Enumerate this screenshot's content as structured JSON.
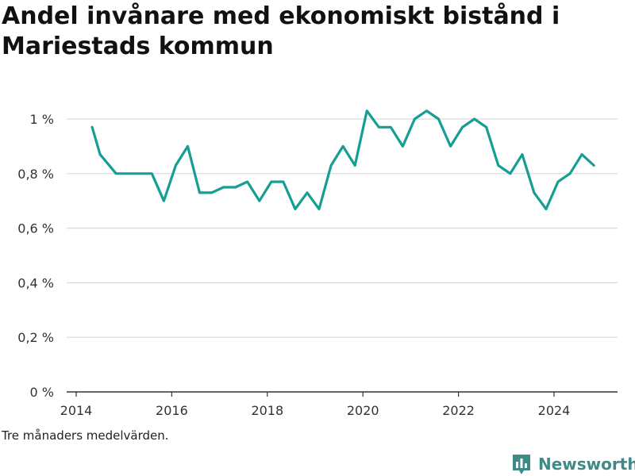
{
  "footnote": "Tre månaders medelvärden.",
  "logo": {
    "text": "Newsworthy",
    "icon": "newsworthy-logo-icon",
    "color": "#3d8b87"
  },
  "colors": {
    "line": "#159f94",
    "grid": "#d9d9d9",
    "axis": "#333333"
  },
  "chart_data": {
    "type": "line",
    "title": "Andel invånare med ekonomiskt bistånd i Mariestads kommun",
    "xlabel": "",
    "ylabel": "",
    "x_ticks": [
      2014,
      2016,
      2018,
      2020,
      2022,
      2024
    ],
    "x_tick_labels": [
      "2014",
      "2016",
      "2018",
      "2020",
      "2022",
      "2024"
    ],
    "y_ticks": [
      0,
      0.2,
      0.4,
      0.6,
      0.8,
      1.0
    ],
    "y_tick_labels": [
      "0 %",
      "0,2 %",
      "0,4 %",
      "0,6 %",
      "0,8 %",
      "1 %"
    ],
    "xlim": [
      2014,
      2025.5
    ],
    "ylim": [
      0,
      1.0
    ],
    "grid": true,
    "legend": "none",
    "series": [
      {
        "x": [
          "2014-05",
          "2014-07",
          "2014-11",
          "2015-04",
          "2015-08",
          "2015-11",
          "2016-02",
          "2016-05",
          "2016-08",
          "2016-11",
          "2017-02",
          "2017-05",
          "2017-08",
          "2017-11",
          "2018-02",
          "2018-05",
          "2018-08",
          "2018-11",
          "2019-02",
          "2019-05",
          "2019-08",
          "2019-11",
          "2020-02",
          "2020-05",
          "2020-08",
          "2020-11",
          "2021-02",
          "2021-05",
          "2021-08",
          "2021-11",
          "2022-02",
          "2022-05",
          "2022-08",
          "2022-11",
          "2023-02",
          "2023-05",
          "2023-08",
          "2023-11",
          "2024-02",
          "2024-05",
          "2024-08",
          "2024-11"
        ],
        "values": [
          0.97,
          0.87,
          0.8,
          0.8,
          0.8,
          0.7,
          0.83,
          0.9,
          0.73,
          0.73,
          0.75,
          0.75,
          0.77,
          0.7,
          0.77,
          0.77,
          0.67,
          0.73,
          0.67,
          0.83,
          0.9,
          0.83,
          1.03,
          0.97,
          0.97,
          0.9,
          1.0,
          1.03,
          1.0,
          0.9,
          0.97,
          1.0,
          0.97,
          0.83,
          0.8,
          0.87,
          0.73,
          0.67,
          0.77,
          0.8,
          0.87,
          0.83
        ]
      }
    ]
  }
}
